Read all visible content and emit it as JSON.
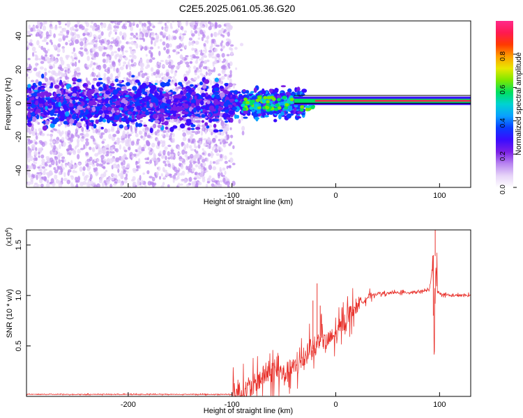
{
  "title": "C2E5.2025.061.05.36.G20",
  "chart_data": [
    {
      "type": "heatmap",
      "xlabel": "Height of straight line (km)",
      "ylabel": "Frequency (Hz)",
      "xlim": [
        -298,
        130
      ],
      "ylim": [
        -50,
        49
      ],
      "xticks": [
        -200,
        -100,
        0,
        100
      ],
      "yticks": [
        -40,
        -20,
        0,
        20,
        40
      ],
      "colorbar": {
        "label": "Normalized spectral amplitude",
        "range": [
          0,
          1
        ],
        "ticks": [
          "0.0",
          "0.2",
          "0.4",
          "0.6",
          "0.8"
        ],
        "colors": [
          "#ffffff",
          "#e6d3f8",
          "#b884f0",
          "#7a1fe6",
          "#3a0cff",
          "#0a3cff",
          "#0aa0ff",
          "#00d2d2",
          "#00e060",
          "#7ae800",
          "#e8e800",
          "#ffa000",
          "#ff3a00",
          "#ff1a50",
          "#ff2a8a"
        ]
      },
      "features": [
        {
          "description": "noise band",
          "x_range": [
            -298,
            -100
          ],
          "y_range": [
            -50,
            49
          ],
          "amplitude": 0.1
        },
        {
          "description": "core band",
          "x_range": [
            -298,
            -40
          ],
          "y_range": [
            -10,
            10
          ],
          "amplitude": 0.25
        },
        {
          "description": "signal line",
          "x_range": [
            -40,
            130
          ],
          "y_center": 1.5,
          "amplitude": 0.95
        }
      ]
    },
    {
      "type": "line",
      "xlabel": "Height of straight line (km)",
      "ylabel": "SNR (10 * v/v)",
      "yscale_label": "(x10",
      "yscale_exp": "4",
      "yscale_close": ")",
      "xlim": [
        -298,
        130
      ],
      "ylim": [
        0,
        1.65
      ],
      "xticks": [
        -200,
        -100,
        0,
        100
      ],
      "yticks": [
        "0.5",
        "1.0",
        "1.5"
      ],
      "color": "#e8302a",
      "series": [
        {
          "x": [
            -298,
            -100,
            -90,
            -80,
            -70,
            -60,
            -50,
            -40,
            -30,
            -25,
            -20,
            -15,
            -10,
            -5,
            0,
            5,
            10,
            20,
            30,
            40,
            50,
            60,
            70,
            80,
            90,
            93,
            95,
            96,
            97,
            100,
            110,
            120,
            130
          ],
          "y": [
            0.02,
            0.02,
            0.04,
            0.1,
            0.2,
            0.25,
            0.22,
            0.28,
            0.38,
            0.5,
            0.45,
            0.6,
            0.52,
            0.58,
            0.6,
            0.68,
            0.78,
            0.9,
            0.98,
            1.02,
            1.02,
            1.03,
            1.03,
            1.04,
            1.05,
            1.25,
            0.35,
            1.65,
            1.05,
            1.02,
            1.0,
            1.0,
            1.0
          ]
        }
      ]
    }
  ]
}
